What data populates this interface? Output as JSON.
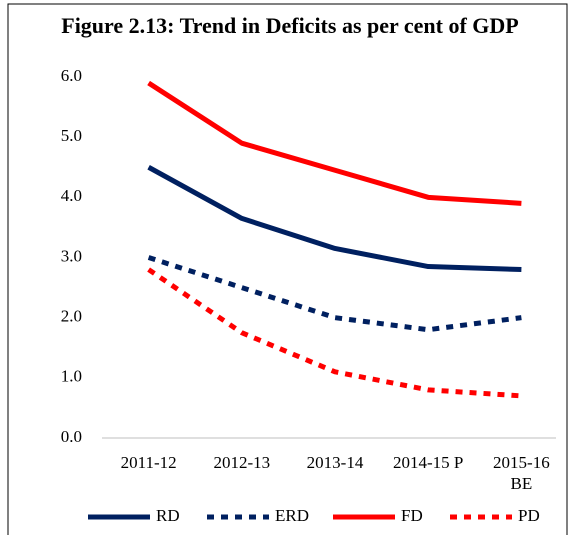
{
  "chart_data": {
    "type": "line",
    "title": "Figure 2.13: Trend in Deficits as per cent of GDP",
    "categories": [
      "2011-12",
      "2012-13",
      "2013-14",
      "2014-15 P",
      "2015-16\nBE"
    ],
    "series": [
      {
        "name": "RD",
        "color": "#002060",
        "line_style": "solid",
        "values": [
          4.5,
          3.65,
          3.15,
          2.85,
          2.8
        ]
      },
      {
        "name": "ERD",
        "color": "#002060",
        "line_style": "dashed",
        "values": [
          3.0,
          2.5,
          2.0,
          1.8,
          2.0
        ]
      },
      {
        "name": "FD",
        "color": "#ff0000",
        "line_style": "solid",
        "values": [
          5.9,
          4.9,
          4.45,
          4.0,
          3.9
        ]
      },
      {
        "name": "PD",
        "color": "#ff0000",
        "line_style": "dashed",
        "values": [
          2.8,
          1.75,
          1.1,
          0.8,
          0.7
        ]
      }
    ],
    "ylim": [
      0,
      6
    ],
    "yticks": [
      {
        "value": 0,
        "label": "0.0"
      },
      {
        "value": 1,
        "label": "1.0"
      },
      {
        "value": 2,
        "label": "2.0"
      },
      {
        "value": 3,
        "label": "3.0"
      },
      {
        "value": 4,
        "label": "4.0"
      },
      {
        "value": 5,
        "label": "5.0"
      },
      {
        "value": 6,
        "label": "6.0"
      }
    ],
    "grid": false,
    "legend": "bottom"
  }
}
